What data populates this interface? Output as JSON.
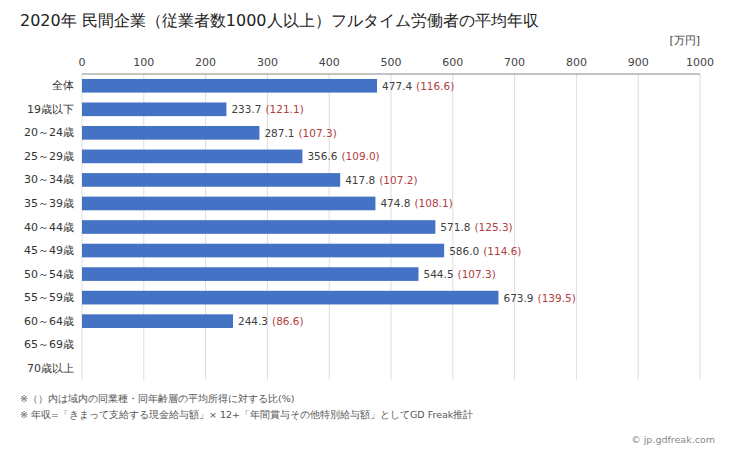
{
  "chart_data": {
    "type": "bar",
    "orientation": "horizontal",
    "title": "2020年 民間企業（従業者数1000人以上）フルタイム労働者の平均年収",
    "categories": [
      "全体",
      "19歳以下",
      "20～24歳",
      "25～29歳",
      "30～34歳",
      "35～39歳",
      "40～44歳",
      "45～49歳",
      "50～54歳",
      "55～59歳",
      "60～64歳",
      "65～69歳",
      "70歳以上"
    ],
    "values": [
      477.4,
      233.7,
      287.1,
      356.6,
      417.8,
      474.8,
      571.8,
      586.0,
      544.5,
      673.9,
      244.3,
      0,
      0
    ],
    "value_labels": [
      "477.4",
      "233.7",
      "287.1",
      "356.6",
      "417.8",
      "474.8",
      "571.8",
      "586.0",
      "544.5",
      "673.9",
      "244.3",
      null,
      null
    ],
    "ratio_labels": [
      "(116.6)",
      "(121.1)",
      "(107.3)",
      "(109.0)",
      "(107.2)",
      "(108.1)",
      "(125.3)",
      "(114.6)",
      "(107.3)",
      "(139.5)",
      "(86.6)",
      null,
      null
    ],
    "color": "#4472C4",
    "xlabel": "[万円]",
    "xlim": [
      0,
      1000
    ],
    "xticks": [
      0,
      100,
      200,
      300,
      400,
      500,
      600,
      700,
      800,
      900,
      1000
    ],
    "grid": true,
    "data_labels": true,
    "annotations": [
      "※（）内は域内の同業種・同年齢層の平均所得に対する比(%)",
      "※ 年収=「きまって支給する現金給与額」× 12+「年間賞与その他特別給与額」としてGD Freak推計",
      "© jp.gdfreak.com"
    ]
  }
}
